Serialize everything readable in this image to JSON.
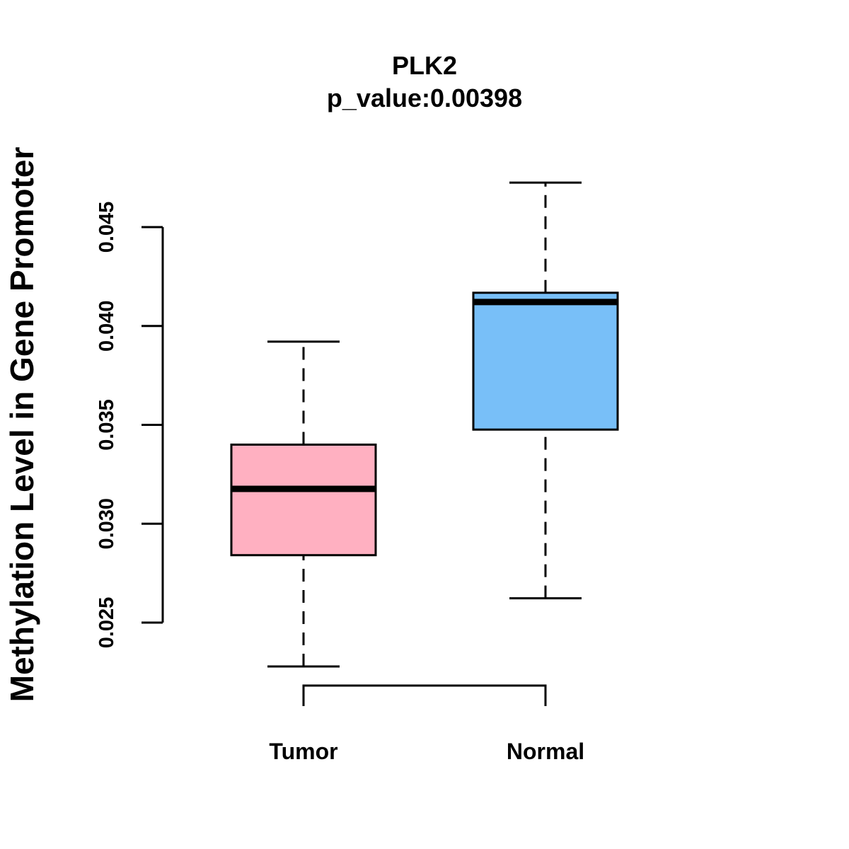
{
  "chart_data": {
    "type": "boxplot",
    "title": "PLK2",
    "subtitle": "p_value:0.00398",
    "xlabel": "",
    "ylabel": "Methylation Level in Gene Promoter",
    "ylim": [
      0.025,
      0.045
    ],
    "y_ticks": [
      0.025,
      0.03,
      0.035,
      0.04,
      0.045
    ],
    "y_tick_labels": [
      "0.025",
      "0.030",
      "0.035",
      "0.040",
      "0.045"
    ],
    "categories": [
      "Tumor",
      "Normal"
    ],
    "boxes": [
      {
        "name": "Tumor",
        "whisker_low": 0.02278,
        "q1": 0.02841,
        "median": 0.03176,
        "q3": 0.034,
        "whisker_high": 0.03921,
        "color": "#FFB0C1"
      },
      {
        "name": "Normal",
        "whisker_low": 0.02623,
        "q1": 0.03476,
        "median": 0.04121,
        "q3": 0.04168,
        "whisker_high": 0.04725,
        "color": "#78BFF8"
      }
    ],
    "significance_bracket": {
      "from": "Tumor",
      "to": "Normal"
    }
  }
}
